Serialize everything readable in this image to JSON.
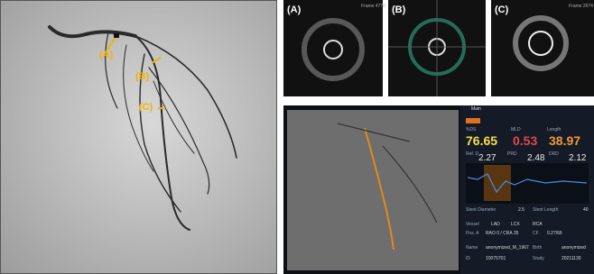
{
  "angiogram": {
    "labels": [
      "(A)",
      "(B)",
      "(C)"
    ]
  },
  "ivus": [
    {
      "label": "(A)",
      "frame": "Frame 4770"
    },
    {
      "label": "(B)"
    },
    {
      "label": "(C)",
      "frame": "Frame 2674"
    }
  ],
  "software": {
    "tab": "Main",
    "metrics": [
      {
        "label": "%DS",
        "value": "76.65"
      },
      {
        "label": "MLD",
        "value": "0.53"
      },
      {
        "label": "Length",
        "value": "38.97"
      }
    ],
    "submetrics": [
      {
        "label": "Ref. D",
        "value": "2.27"
      },
      {
        "label": "PRD",
        "value": "2.48"
      },
      {
        "label": "DRD",
        "value": "2.12"
      }
    ],
    "stent": [
      {
        "label": "Stent Diameter",
        "value": "2.5"
      },
      {
        "label": "Stent Length",
        "value": "40"
      }
    ],
    "vessel": {
      "label": "Vessel",
      "options": [
        "LAD",
        "LCX",
        "RCA"
      ]
    },
    "info": [
      {
        "label": "Pos. A",
        "value": "RAO 0 / CRA 35"
      },
      {
        "label": "CF",
        "value": "0.27/66"
      },
      {
        "label": "Name",
        "value": "anonymized_M_1967"
      },
      {
        "label": "Birth",
        "value": "anonymized"
      },
      {
        "label": "ID",
        "value": "10075701"
      },
      {
        "label": "Study",
        "value": "20211130"
      }
    ]
  }
}
